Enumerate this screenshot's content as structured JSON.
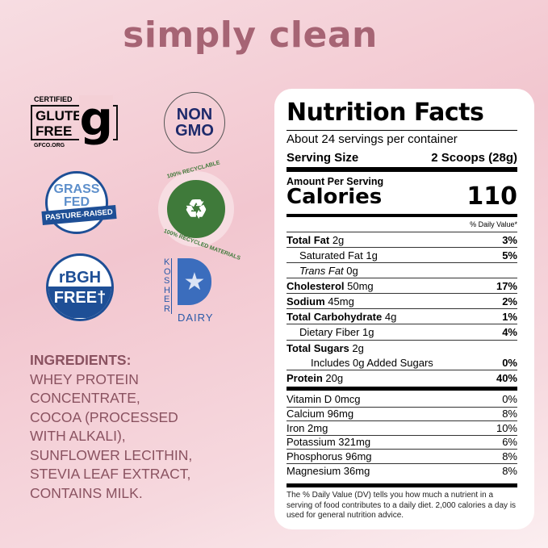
{
  "headline": "simply clean",
  "badges": {
    "gluten_free": {
      "top": "CERTIFIED",
      "line1": "GLUTEN",
      "line2": "FREE",
      "site": "GFCO.ORG"
    },
    "non_gmo": {
      "line1": "NON",
      "line2": "GMO"
    },
    "grass_fed": {
      "line1": "GRASS",
      "line2": "FED",
      "ribbon": "PASTURE-RAISED"
    },
    "recyclable": {
      "top": "100% RECYCLABLE",
      "bottom": "100% RECYCLED MATERIALS"
    },
    "rbgh": {
      "line1": "rBGH",
      "line2": "FREE†"
    },
    "kosher": {
      "vertical": "KOSHER",
      "bottom": "DAIRY"
    }
  },
  "ingredients": {
    "heading": "INGREDIENTS:",
    "lines": [
      "WHEY PROTEIN",
      "CONCENTRATE,",
      "COCOA (PROCESSED",
      "WITH ALKALI),",
      "SUNFLOWER LECITHIN,",
      "STEVIA LEAF EXTRACT,",
      "CONTAINS MILK."
    ]
  },
  "nutrition": {
    "title": "Nutrition Facts",
    "servings": "About 24 servings per container",
    "serving_size_label": "Serving Size",
    "serving_size": "2 Scoops (28g)",
    "amount_per_serving": "Amount Per Serving",
    "calories_label": "Calories",
    "calories": "110",
    "dv_header": "% Daily Value*",
    "rows": [
      {
        "name": "Total Fat",
        "amount": "2g",
        "dv": "3%"
      },
      {
        "name": "Saturated Fat",
        "amount": "1g",
        "dv": "5%"
      },
      {
        "name": "Trans Fat",
        "amount": "0g",
        "dv": ""
      },
      {
        "name": "Cholesterol",
        "amount": "50mg",
        "dv": "17%"
      },
      {
        "name": "Sodium",
        "amount": "45mg",
        "dv": "2%"
      },
      {
        "name": "Total Carbohydrate",
        "amount": "4g",
        "dv": "1%"
      },
      {
        "name": "Dietary Fiber",
        "amount": "1g",
        "dv": "4%"
      },
      {
        "name": "Total Sugars",
        "amount": "2g",
        "dv": ""
      },
      {
        "name": "Includes 0g Added Sugars",
        "amount": "",
        "dv": "0%"
      },
      {
        "name": "Protein",
        "amount": "20g",
        "dv": "40%"
      }
    ],
    "vitamins": [
      {
        "name": "Vitamin D 0mcg",
        "dv": "0%"
      },
      {
        "name": "Calcium 96mg",
        "dv": "8%"
      },
      {
        "name": "Iron 2mg",
        "dv": "10%"
      },
      {
        "name": "Potassium 321mg",
        "dv": "6%"
      },
      {
        "name": "Phosphorus 96mg",
        "dv": "8%"
      },
      {
        "name": "Magnesium 36mg",
        "dv": "8%"
      }
    ],
    "footnote": "The % Daily Value (DV) tells you how much a nutrient in a serving of food contributes to a daily diet. 2,000 calories a day is used for general nutrition advice."
  }
}
